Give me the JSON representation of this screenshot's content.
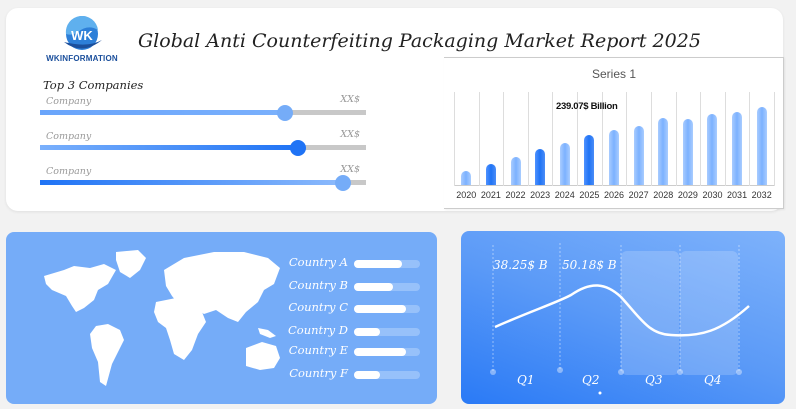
{
  "header": {
    "logo_text": "WKINFORMATION",
    "title": "Global Anti Counterfeiting Packaging Market Report 2025"
  },
  "companies": {
    "heading": "Top 3 Companies",
    "items": [
      {
        "label": "Company",
        "value": "XX$",
        "percent": 75
      },
      {
        "label": "Company",
        "value": "XX$",
        "percent": 79
      },
      {
        "label": "Company",
        "value": "XX$",
        "percent": 93
      }
    ]
  },
  "chart_data": {
    "type": "bar",
    "title": "Series 1",
    "categories": [
      "2020",
      "2021",
      "2022",
      "2023",
      "2024",
      "2025",
      "2026",
      "2027",
      "2028",
      "2029",
      "2030",
      "2031",
      "2032"
    ],
    "values": [
      15,
      22,
      30,
      38,
      45,
      53,
      58,
      63,
      71,
      70,
      76,
      78,
      83
    ],
    "highlighted": [
      "2021",
      "2023",
      "2025"
    ],
    "annotation": "239.07$ Billion",
    "xlabel": "",
    "ylabel": "",
    "grid": "vertical"
  },
  "countries": [
    {
      "label": "Country A",
      "percent": 72
    },
    {
      "label": "Country B",
      "percent": 59
    },
    {
      "label": "Country C",
      "percent": 79
    },
    {
      "label": "Country D",
      "percent": 40
    },
    {
      "label": "Country E",
      "percent": 79
    },
    {
      "label": "Country F",
      "percent": 40
    }
  ],
  "quarterly": {
    "quarters": [
      "Q1",
      "Q2",
      "Q3",
      "Q4"
    ],
    "values": [
      "38.25$ B",
      "50.18$ B"
    ]
  },
  "colors": {
    "accent": "#1f73f5",
    "light_bar": "#7cb1ff",
    "map_bg": "#75acf8"
  }
}
